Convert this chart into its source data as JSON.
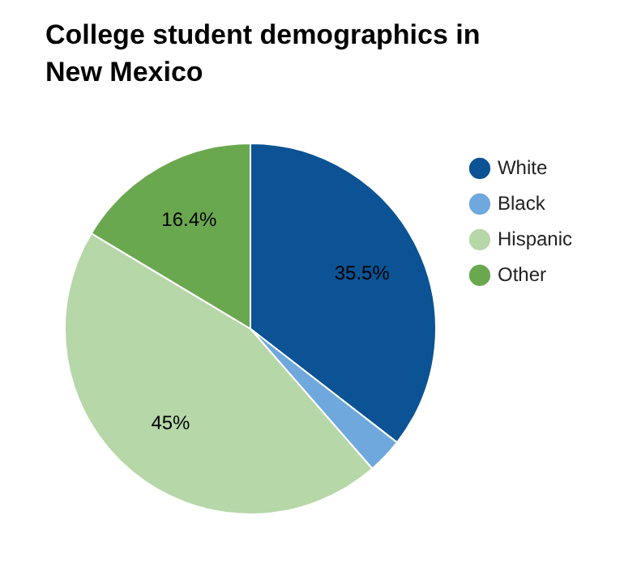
{
  "chart_data": {
    "type": "pie",
    "title": "College student demographics in New Mexico",
    "categories": [
      "White",
      "Black",
      "Hispanic",
      "Other"
    ],
    "values": [
      35.5,
      3.1,
      45,
      16.4
    ],
    "colors": [
      "#0b5394",
      "#6fa8dc",
      "#b6d7a8",
      "#6aa84f"
    ],
    "value_labels": [
      "35.5%",
      null,
      "45%",
      "16.4%"
    ],
    "legend": "right"
  }
}
